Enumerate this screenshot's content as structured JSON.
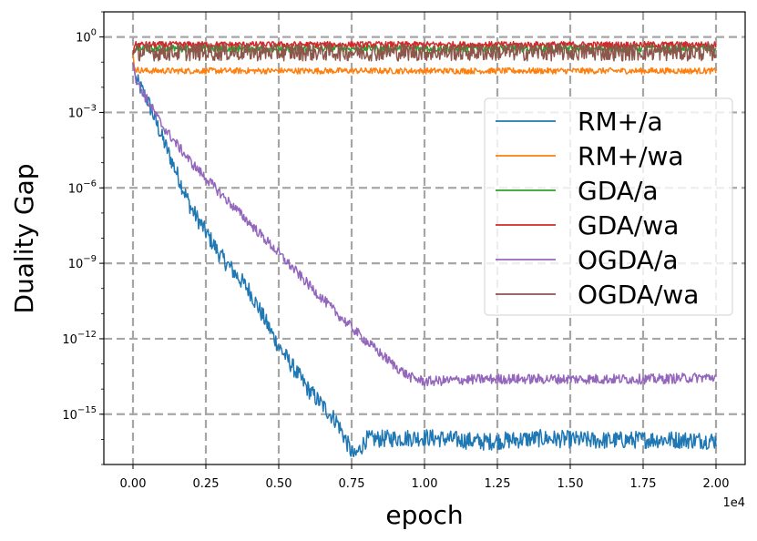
{
  "chart_data": {
    "type": "line",
    "title": "",
    "xlabel": "epoch",
    "ylabel": "Duality Gap",
    "yscale": "log",
    "xlim": [
      -1000,
      21000
    ],
    "ylim": [
      1e-17,
      10
    ],
    "x_offset_text": "1e4",
    "x_ticks": [
      0,
      2500,
      5000,
      7500,
      10000,
      12500,
      15000,
      17500,
      20000
    ],
    "x_tick_labels": [
      "0.00",
      "0.25",
      "0.50",
      "0.75",
      "1.00",
      "1.25",
      "1.50",
      "1.75",
      "2.00"
    ],
    "y_ticks": [
      1,
      0.001,
      1e-06,
      1e-09,
      1e-12,
      1e-15
    ],
    "y_tick_labels": [
      {
        "base": "10",
        "exp": "0"
      },
      {
        "base": "10",
        "exp": "−3"
      },
      {
        "base": "10",
        "exp": "−6"
      },
      {
        "base": "10",
        "exp": "−9"
      },
      {
        "base": "10",
        "exp": "−12"
      },
      {
        "base": "10",
        "exp": "−15"
      }
    ],
    "grid": true,
    "legend_position": "center-right",
    "series": [
      {
        "name": "RM+/a",
        "color": "#1f77b4",
        "x": [
          0,
          100,
          250,
          500,
          1000,
          2000,
          3000,
          4000,
          5000,
          6000,
          7000,
          7500,
          7600,
          8000,
          10000,
          12000,
          14000,
          16000,
          18000,
          20000
        ],
        "y": [
          0.1,
          0.02,
          0.01,
          0.003,
          0.0001,
          1.5e-07,
          2e-09,
          8e-11,
          5e-13,
          1e-14,
          5e-16,
          3e-17,
          2e-17,
          1e-16,
          1.2e-16,
          8e-17,
          1.1e-16,
          9e-17,
          1e-16,
          9e-17
        ],
        "noise_exp": 0.35
      },
      {
        "name": "RM+/wa",
        "color": "#ff7f0e",
        "x": [
          0,
          50,
          100,
          500,
          1000,
          5000,
          10000,
          15000,
          20000
        ],
        "y": [
          0.2,
          0.06,
          0.05,
          0.045,
          0.045,
          0.045,
          0.045,
          0.045,
          0.045
        ],
        "noise_exp": 0.12
      },
      {
        "name": "GDA/a",
        "color": "#2ca02c",
        "x": [
          0,
          50,
          100,
          1000,
          5000,
          10000,
          15000,
          20000
        ],
        "y": [
          0.2,
          0.3,
          0.35,
          0.35,
          0.35,
          0.35,
          0.35,
          0.35
        ],
        "noise_exp": 0.14
      },
      {
        "name": "GDA/wa",
        "color": "#d62728",
        "x": [
          0,
          50,
          100,
          1000,
          5000,
          10000,
          15000,
          20000
        ],
        "y": [
          0.2,
          0.45,
          0.5,
          0.5,
          0.5,
          0.5,
          0.5,
          0.5
        ],
        "noise_exp": 0.12
      },
      {
        "name": "OGDA/a",
        "color": "#9467bd",
        "x": [
          0,
          100,
          500,
          1000,
          2000,
          3000,
          4000,
          5000,
          6000,
          7000,
          8000,
          9000,
          9500,
          10000,
          12000,
          14000,
          16000,
          18000,
          20000
        ],
        "y": [
          0.1,
          0.02,
          0.003,
          0.0003,
          1e-05,
          6e-07,
          4e-08,
          2.5e-09,
          1.5e-10,
          1e-11,
          8e-13,
          8e-14,
          3e-14,
          2e-14,
          2.5e-14,
          2.5e-14,
          2.5e-14,
          2.5e-14,
          3e-14
        ],
        "noise_exp": 0.2
      },
      {
        "name": "OGDA/wa",
        "color": "#8c564b",
        "x": [
          0,
          50,
          100,
          1000,
          5000,
          10000,
          15000,
          20000
        ],
        "y": [
          0.2,
          0.25,
          0.25,
          0.25,
          0.25,
          0.25,
          0.25,
          0.25
        ],
        "noise_exp": 0.35
      }
    ]
  }
}
